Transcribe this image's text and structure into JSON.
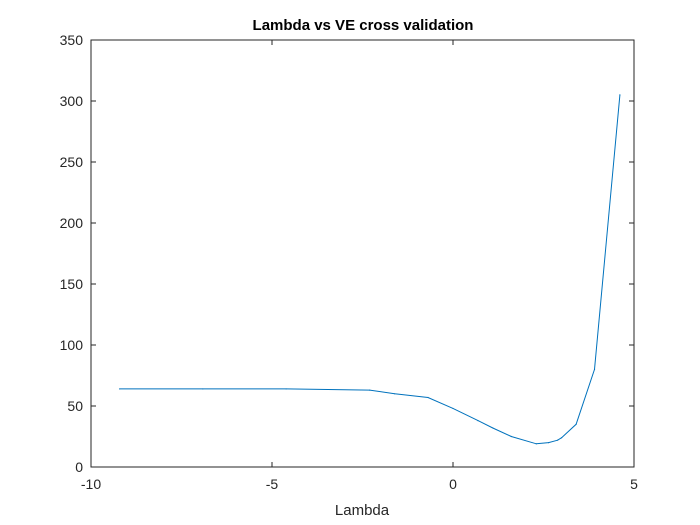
{
  "chart_data": {
    "type": "line",
    "title": "Lambda vs VE cross validation",
    "xlabel": "Lambda",
    "ylabel": "",
    "xlim": [
      -10,
      5
    ],
    "ylim": [
      0,
      350
    ],
    "x_ticks": [
      -10,
      -5,
      0,
      5
    ],
    "x_tick_labels": [
      "-10",
      "-5",
      "0",
      "5"
    ],
    "y_ticks": [
      0,
      50,
      100,
      150,
      200,
      250,
      300,
      350
    ],
    "y_tick_labels": [
      "0",
      "50",
      "100",
      "150",
      "200",
      "250",
      "300",
      "350"
    ],
    "grid": false,
    "legend": "none",
    "line_color": "#0072BD",
    "series": [
      {
        "x": [
          -9.21,
          -6.91,
          -4.61,
          -2.3,
          -1.61,
          -0.69,
          0.0,
          0.69,
          1.1,
          1.61,
          2.3,
          2.64,
          2.89,
          3.0,
          3.4,
          3.91,
          4.61
        ],
        "y": [
          64,
          64,
          64,
          63,
          60,
          57,
          48,
          38,
          32,
          25,
          19,
          20,
          22,
          24,
          35,
          80,
          305
        ]
      }
    ]
  }
}
